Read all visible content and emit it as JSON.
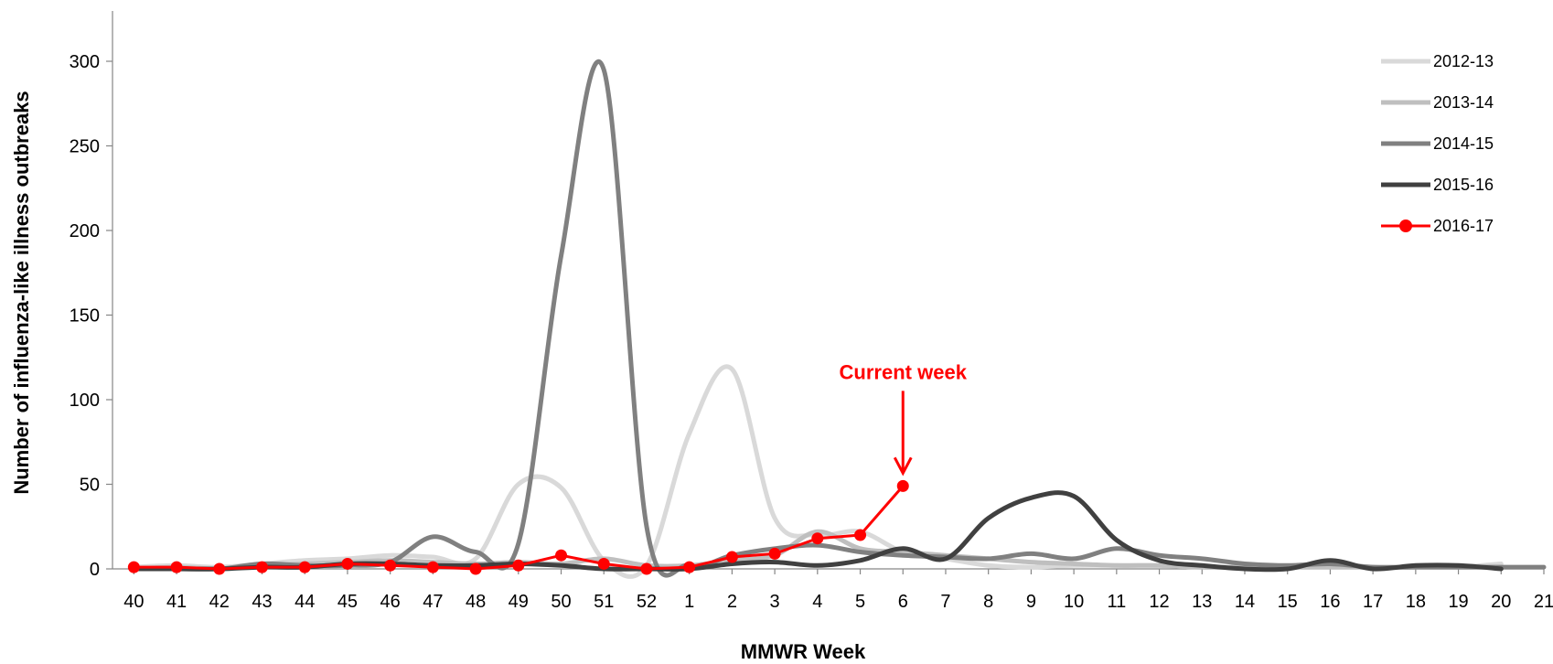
{
  "chart_data": {
    "type": "line",
    "xlabel": "MMWR Week",
    "ylabel": "Number of influenza-like illness outbreaks",
    "ylim": [
      0,
      300
    ],
    "yticks": [
      0,
      50,
      100,
      150,
      200,
      250,
      300
    ],
    "grid": false,
    "legend_position": "top-right",
    "categories": [
      "40",
      "41",
      "42",
      "43",
      "44",
      "45",
      "46",
      "47",
      "48",
      "49",
      "50",
      "51",
      "52",
      "1",
      "2",
      "3",
      "4",
      "5",
      "6",
      "7",
      "8",
      "9",
      "10",
      "11",
      "12",
      "13",
      "14",
      "15",
      "16",
      "17",
      "18",
      "19",
      "20",
      "21"
    ],
    "series": [
      {
        "name": "2012-13",
        "color": "#d9d9d9",
        "marker": false,
        "values": [
          1,
          2,
          1,
          3,
          5,
          6,
          8,
          7,
          6,
          50,
          48,
          5,
          2,
          80,
          118,
          30,
          20,
          22,
          10,
          6,
          2,
          1,
          2,
          2,
          2,
          1,
          1,
          1,
          2,
          1,
          1,
          1,
          3,
          null
        ]
      },
      {
        "name": "2013-14",
        "color": "#bfbfbf",
        "marker": false,
        "values": [
          0,
          1,
          0,
          2,
          3,
          4,
          5,
          4,
          3,
          4,
          3,
          6,
          2,
          2,
          5,
          8,
          22,
          12,
          10,
          8,
          6,
          4,
          3,
          2,
          2,
          1,
          1,
          1,
          1,
          1,
          1,
          1,
          1,
          null
        ]
      },
      {
        "name": "2014-15",
        "color": "#808080",
        "marker": false,
        "values": [
          0,
          0,
          0,
          3,
          2,
          2,
          4,
          19,
          10,
          15,
          185,
          295,
          25,
          2,
          8,
          12,
          14,
          10,
          8,
          7,
          6,
          9,
          6,
          12,
          8,
          6,
          3,
          2,
          3,
          1,
          1,
          1,
          1,
          1
        ]
      },
      {
        "name": "2015-16",
        "color": "#404040",
        "marker": false,
        "values": [
          0,
          0,
          0,
          1,
          1,
          3,
          3,
          2,
          2,
          3,
          2,
          0,
          0,
          0,
          3,
          4,
          2,
          5,
          12,
          6,
          30,
          42,
          43,
          17,
          5,
          2,
          0,
          0,
          5,
          0,
          2,
          2,
          0,
          null
        ]
      },
      {
        "name": "2016-17",
        "color": "#ff0000",
        "marker": true,
        "values": [
          1,
          1,
          0,
          1,
          1,
          3,
          2,
          1,
          0,
          2,
          8,
          3,
          0,
          1,
          7,
          9,
          18,
          20,
          49,
          null,
          null,
          null,
          null,
          null,
          null,
          null,
          null,
          null,
          null,
          null,
          null,
          null,
          null,
          null
        ]
      }
    ],
    "annotations": [
      {
        "text": "Current week",
        "category": "6",
        "value": 49,
        "color": "#ff0000"
      }
    ]
  }
}
